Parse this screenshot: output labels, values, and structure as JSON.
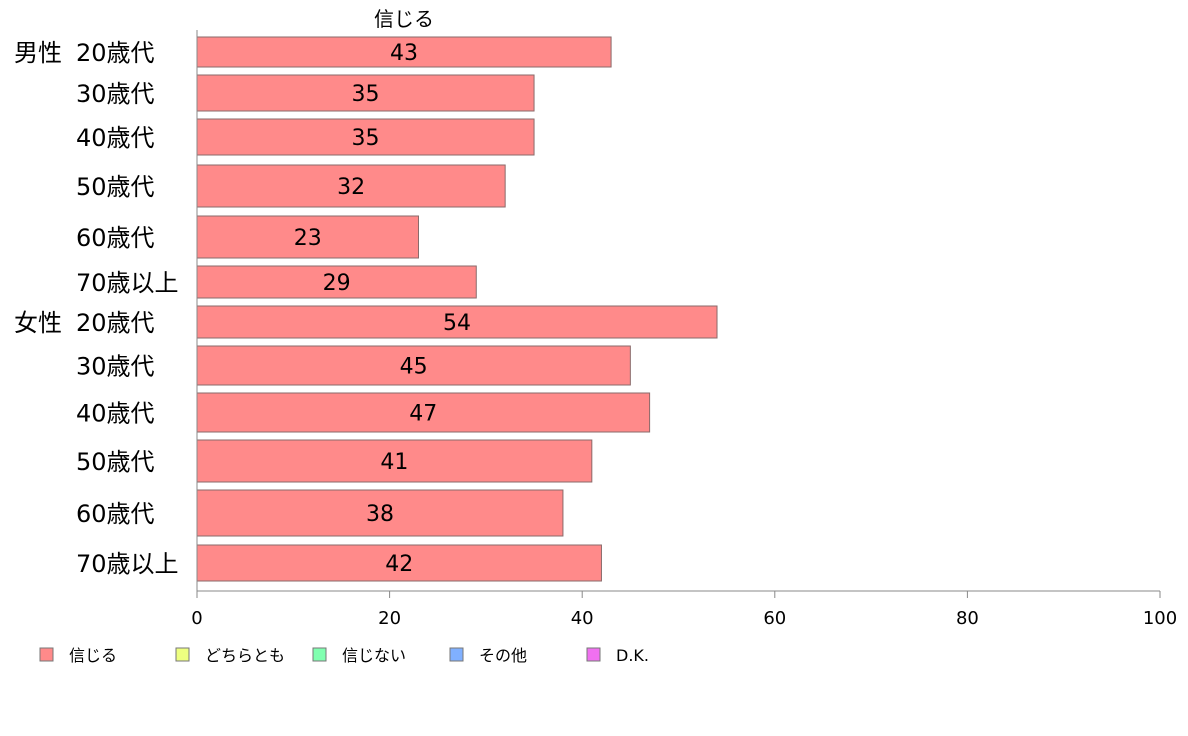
{
  "chart_data": {
    "type": "bar",
    "orientation": "horizontal",
    "title": "信じる",
    "groups": [
      {
        "label": "男性",
        "categories": [
          "20歳代",
          "30歳代",
          "40歳代",
          "50歳代",
          "60歳代",
          "70歳以上"
        ],
        "values": [
          43,
          35,
          35,
          32,
          23,
          29
        ]
      },
      {
        "label": "女性",
        "categories": [
          "20歳代",
          "30歳代",
          "40歳代",
          "50歳代",
          "60歳代",
          "70歳以上"
        ],
        "values": [
          54,
          45,
          47,
          41,
          38,
          42
        ]
      }
    ],
    "xlim": [
      0,
      100
    ],
    "xticks": [
      0,
      20,
      40,
      60,
      80,
      100
    ],
    "grid": false,
    "bar_color": "#ff8a8a",
    "legend": {
      "placement": "bottom",
      "entries": [
        {
          "label": "信じる",
          "color": "#ff8a8a"
        },
        {
          "label": "どちらとも",
          "color": "#eeff80"
        },
        {
          "label": "信じない",
          "color": "#80ffb0"
        },
        {
          "label": "その他",
          "color": "#80b0ff"
        },
        {
          "label": "D.K.",
          "color": "#f070f0"
        }
      ]
    }
  }
}
